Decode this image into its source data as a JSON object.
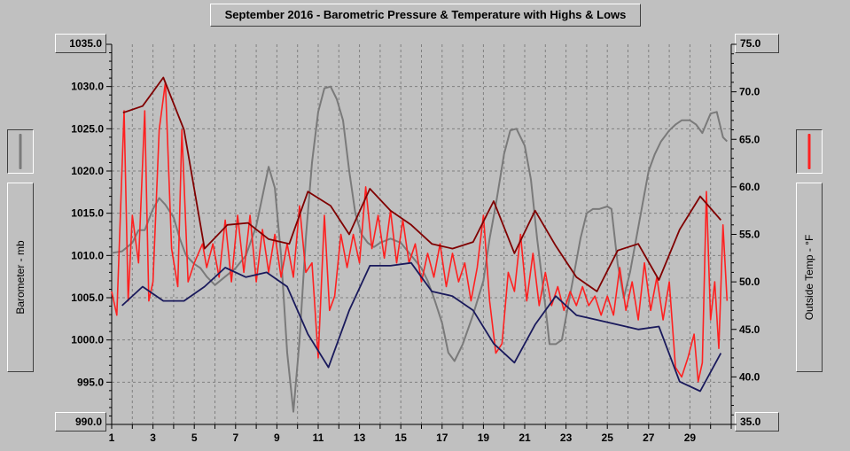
{
  "title": "September 2016 - Barometric Pressure & Temperature with Highs & Lows",
  "left_axis": {
    "label": "Barometer - mb",
    "top_value": "1035.0",
    "bottom_value": "990.0"
  },
  "right_axis": {
    "label": "Outside Temp - °F",
    "top_value": "75.0",
    "bottom_value": "35.0"
  },
  "colors": {
    "background": "#c0c0c0",
    "barometer": "#7a7a7a",
    "temperature": "#ff2020",
    "temp_highs": "#800000",
    "temp_lows": "#1a1a5c",
    "grid": "#808080"
  },
  "chart_data": {
    "type": "line",
    "title": "September 2016 - Barometric Pressure & Temperature with Highs & Lows",
    "xlabel": "",
    "ylabel": "Barometer - mb",
    "y2label": "Outside Temp - °F",
    "xlim": [
      1,
      31
    ],
    "ylim": [
      990,
      1035
    ],
    "y2lim": [
      35,
      75
    ],
    "grid": true,
    "x_ticks": [
      1,
      3,
      5,
      7,
      9,
      11,
      13,
      15,
      17,
      19,
      21,
      23,
      25,
      27,
      29
    ],
    "y_ticks": [
      990.0,
      995.0,
      1000.0,
      1005.0,
      1010.0,
      1015.0,
      1020.0,
      1025.0,
      1030.0
    ],
    "y2_ticks": [
      35.0,
      40.0,
      45.0,
      50.0,
      55.0,
      60.0,
      65.0,
      70.0
    ],
    "y_tick_labels": [
      "1030.0",
      "1025.0",
      "1020.0",
      "1015.0",
      "1010.0",
      "1005.0",
      "1000.0",
      "995.0"
    ],
    "y2_tick_labels": [
      "70.0",
      "65.0",
      "60.0",
      "55.0",
      "50.0",
      "45.0",
      "40.0"
    ],
    "series": [
      {
        "axis": "left",
        "color": "#7a7a7a",
        "x": [
          1.0,
          1.5,
          2.0,
          2.3,
          2.6,
          3.0,
          3.3,
          3.6,
          4.0,
          4.3,
          4.6,
          5.0,
          5.3,
          5.6,
          6.0,
          6.5,
          7.0,
          7.5,
          8.0,
          8.3,
          8.6,
          8.9,
          9.2,
          9.5,
          9.8,
          10.1,
          10.4,
          10.7,
          11.0,
          11.3,
          11.6,
          11.9,
          12.2,
          12.5,
          12.8,
          13.1,
          13.4,
          13.7,
          14.0,
          14.5,
          15.0,
          15.5,
          16.0,
          16.3,
          16.6,
          17.0,
          17.3,
          17.6,
          18.0,
          18.5,
          19.0,
          19.3,
          19.6,
          20.0,
          20.3,
          20.6,
          21.0,
          21.3,
          21.6,
          22.0,
          22.2,
          22.5,
          22.8,
          23.1,
          23.4,
          23.7,
          24.0,
          24.3,
          24.6,
          25.0,
          25.2,
          25.5,
          25.8,
          26.1,
          26.4,
          26.7,
          27.0,
          27.3,
          27.6,
          28.0,
          28.3,
          28.6,
          29.0,
          29.3,
          29.6,
          30.0,
          30.3,
          30.6,
          30.8
        ],
        "y": [
          1010.3,
          1010.5,
          1011.5,
          1013.0,
          1013.0,
          1015.5,
          1016.8,
          1016.0,
          1014.5,
          1012.0,
          1010.0,
          1009.0,
          1008.5,
          1007.5,
          1006.5,
          1007.5,
          1008.5,
          1010.0,
          1013.5,
          1017.0,
          1020.5,
          1018.0,
          1010.0,
          998.5,
          991.5,
          1000.0,
          1012.0,
          1021.0,
          1027.0,
          1029.8,
          1030.0,
          1028.5,
          1026.0,
          1020.0,
          1015.0,
          1012.5,
          1011.5,
          1011.0,
          1011.5,
          1012.0,
          1011.5,
          1010.0,
          1008.5,
          1007.0,
          1005.0,
          1002.0,
          998.5,
          997.5,
          999.5,
          1003.0,
          1007.0,
          1012.0,
          1016.0,
          1022.0,
          1024.8,
          1025.0,
          1023.0,
          1019.0,
          1012.0,
          1004.0,
          999.5,
          999.5,
          1000.0,
          1004.0,
          1008.0,
          1012.0,
          1015.0,
          1015.5,
          1015.5,
          1015.8,
          1015.5,
          1009.0,
          1005.0,
          1008.0,
          1012.0,
          1016.0,
          1020.0,
          1022.0,
          1023.5,
          1024.8,
          1025.5,
          1026.0,
          1026.0,
          1025.5,
          1024.5,
          1026.8,
          1027.0,
          1024.0,
          1023.5
        ]
      },
      {
        "axis": "right",
        "color": "#ff2020",
        "x": [
          1.0,
          1.25,
          1.6,
          1.8,
          2.0,
          2.3,
          2.6,
          2.8,
          3.0,
          3.3,
          3.6,
          3.9,
          4.2,
          4.4,
          4.7,
          5.0,
          5.4,
          5.6,
          5.9,
          6.2,
          6.5,
          6.8,
          7.1,
          7.4,
          7.7,
          8.0,
          8.3,
          8.6,
          8.9,
          9.2,
          9.5,
          9.8,
          10.1,
          10.4,
          10.7,
          11.0,
          11.3,
          11.55,
          11.8,
          12.1,
          12.4,
          12.7,
          13.0,
          13.3,
          13.6,
          13.9,
          14.2,
          14.5,
          14.8,
          15.1,
          15.4,
          15.7,
          16.0,
          16.3,
          16.6,
          16.9,
          17.2,
          17.5,
          17.8,
          18.1,
          18.4,
          18.7,
          19.0,
          19.3,
          19.6,
          19.9,
          20.2,
          20.5,
          20.8,
          21.1,
          21.4,
          21.7,
          22.0,
          22.3,
          22.6,
          22.9,
          23.2,
          23.5,
          23.8,
          24.1,
          24.4,
          24.7,
          25.0,
          25.3,
          25.6,
          25.9,
          26.2,
          26.5,
          26.8,
          27.1,
          27.4,
          27.7,
          28.0,
          28.3,
          28.6,
          28.9,
          29.2,
          29.4,
          29.6,
          29.8,
          30.0,
          30.2,
          30.4,
          30.6,
          30.8
        ],
        "y": [
          49.0,
          46.5,
          68.0,
          48.0,
          57.0,
          52.0,
          68.0,
          48.0,
          50.0,
          66.0,
          71.0,
          53.5,
          49.5,
          66.0,
          50.0,
          52.0,
          54.0,
          51.5,
          54.0,
          50.5,
          56.5,
          50.0,
          57.0,
          51.0,
          57.0,
          50.0,
          55.5,
          51.0,
          55.0,
          50.5,
          54.0,
          50.5,
          58.0,
          51.0,
          52.0,
          42.0,
          57.0,
          47.0,
          48.5,
          55.0,
          51.5,
          55.0,
          52.0,
          60.0,
          53.5,
          57.0,
          52.5,
          57.5,
          52.0,
          56.5,
          52.0,
          54.0,
          50.0,
          53.0,
          50.5,
          54.0,
          49.5,
          53.0,
          50.0,
          52.0,
          48.0,
          51.5,
          57.0,
          48.0,
          42.5,
          43.5,
          51.0,
          49.0,
          55.0,
          48.0,
          53.0,
          47.5,
          51.0,
          47.5,
          49.5,
          47.0,
          49.0,
          47.5,
          49.5,
          47.5,
          48.5,
          46.5,
          48.5,
          46.5,
          51.5,
          47.0,
          50.0,
          46.0,
          52.0,
          47.0,
          50.5,
          46.0,
          50.0,
          41.0,
          40.0,
          42.0,
          44.5,
          39.5,
          41.5,
          59.5,
          46.0,
          50.0,
          43.0,
          56.0,
          48.0
        ]
      },
      {
        "axis": "right",
        "color": "#800000",
        "x": [
          1.55,
          2.5,
          3.5,
          4.5,
          5.5,
          6.6,
          7.6,
          8.6,
          9.6,
          10.5,
          11.6,
          12.5,
          13.5,
          14.5,
          15.5,
          16.5,
          17.5,
          18.5,
          19.5,
          20.5,
          21.5,
          22.5,
          23.5,
          24.5,
          25.5,
          26.5,
          27.5,
          28.5,
          29.5,
          30.5
        ],
        "y": [
          67.8,
          68.5,
          71.5,
          66.0,
          53.5,
          56.0,
          56.2,
          54.5,
          54.0,
          59.5,
          58.0,
          55.0,
          59.8,
          57.5,
          56.0,
          54.0,
          53.5,
          54.2,
          58.5,
          53.0,
          57.5,
          53.8,
          50.5,
          49.0,
          53.3,
          54.0,
          50.2,
          55.5,
          59.0,
          56.5
        ]
      },
      {
        "axis": "right",
        "color": "#1a1a5c",
        "x": [
          1.5,
          2.5,
          3.5,
          4.5,
          5.5,
          6.5,
          7.5,
          8.5,
          9.5,
          10.5,
          11.5,
          12.5,
          13.5,
          14.5,
          15.5,
          16.5,
          17.5,
          18.5,
          19.5,
          20.5,
          21.5,
          22.5,
          23.5,
          24.5,
          25.5,
          26.5,
          27.5,
          28.5,
          29.5,
          30.5
        ],
        "y": [
          47.5,
          49.5,
          48.0,
          48.0,
          49.5,
          51.5,
          50.5,
          51.0,
          49.5,
          44.5,
          41.0,
          47.0,
          51.7,
          51.7,
          52.0,
          49.0,
          48.5,
          47.0,
          43.5,
          41.5,
          45.5,
          48.5,
          46.5,
          46.0,
          45.5,
          45.0,
          45.3,
          39.5,
          38.5,
          42.5
        ]
      }
    ]
  }
}
